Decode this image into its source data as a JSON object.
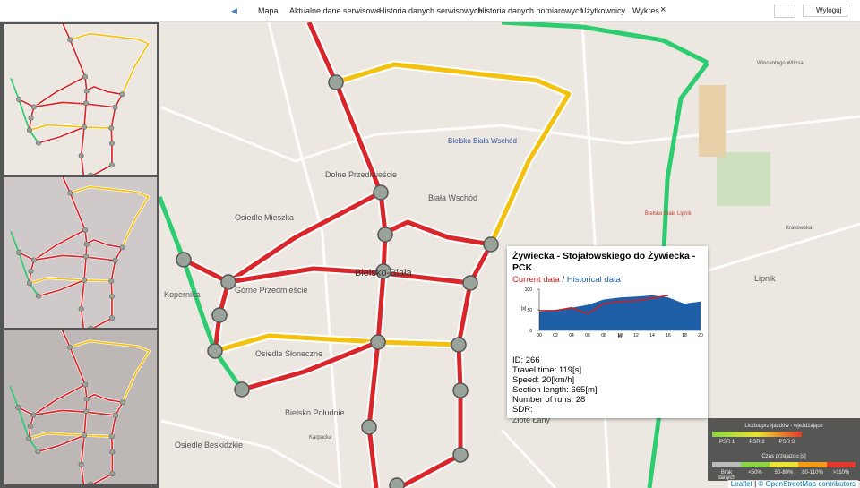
{
  "nav": {
    "items": [
      "Mapa",
      "Aktualne dane serwisowe",
      "Historia danych serwisowych",
      "Historia danych pomiarowych",
      "Użytkownicy",
      "Wykres"
    ],
    "close": "×",
    "logout": "Wyloguj"
  },
  "map": {
    "labels": [
      "Bielsko Biała Wschód",
      "Dolne Przedmieście",
      "Biała Wschód",
      "Osiedle Mieszka",
      "Bielsko-Biała",
      "Górne Przedmieście",
      "Kopernika",
      "Osiedle Słoneczne",
      "Bielsko Południe",
      "Osiedle Beskidzkie",
      "Karpacka",
      "Krakowska",
      "Lipnik",
      "Bielsko Biała Lipnik",
      "Wincentego Witosa",
      "Złote Łany"
    ]
  },
  "popup": {
    "title": "Żywiecka - Stojałowskiego do Żywiecka - PCK",
    "separator": "/",
    "chart": {
      "type": "area",
      "categories": [
        "00",
        "02",
        "04",
        "06",
        "08",
        "10",
        "12",
        "14",
        "16",
        "18",
        "20"
      ],
      "ylim": [
        0,
        100
      ],
      "yticks": [
        0,
        50,
        100
      ],
      "y_label": "[s]",
      "x_label": "[t]",
      "series": [
        {
          "name": "Historical data",
          "color": "#1f5fa8",
          "values": [
            45,
            50,
            55,
            62,
            75,
            80,
            82,
            85,
            80,
            65,
            70
          ]
        },
        {
          "name": "Current data",
          "color": "#cc1f1f",
          "values": [
            48,
            48,
            55,
            40,
            65,
            70,
            72,
            78,
            85,
            null,
            null
          ]
        }
      ]
    },
    "info": [
      "ID: 266",
      "Travel time: 119[s]",
      "Speed: 20[km/h]",
      "Section length: 665[m]",
      "Number of runs: 28",
      "SDR:"
    ]
  },
  "legend": {
    "count_title": "Liczba przejazdów - wjeżdżające",
    "psr": [
      "PSR 1",
      "PSR 2",
      "PSR 3"
    ],
    "time_title": "Czas przejazdu [s]",
    "time_classes": [
      "Brak danych",
      "<50%",
      "50-80%",
      "80-110%",
      ">110%"
    ]
  },
  "attribution": {
    "leaflet": "Leaflet",
    "separator": "|",
    "osm": "© OpenStreetMap contributors"
  }
}
